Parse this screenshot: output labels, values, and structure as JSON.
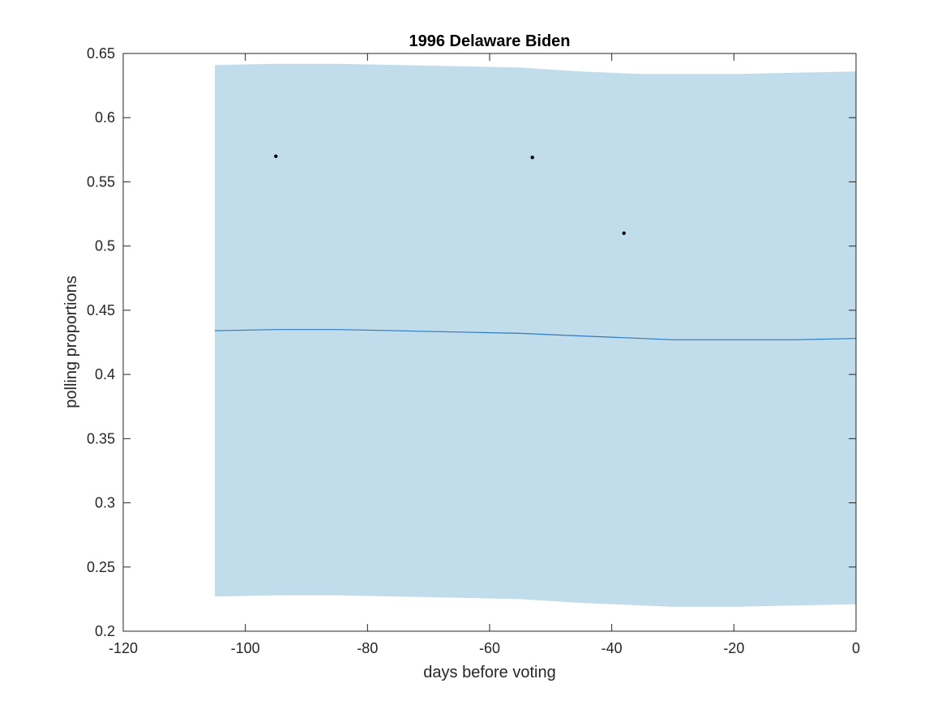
{
  "chart_data": {
    "type": "line",
    "title": "1996 Delaware Biden",
    "xlabel": "days before voting",
    "ylabel": "polling proportions",
    "xlim": [
      -120,
      0
    ],
    "ylim": [
      0.2,
      0.65
    ],
    "xticks": [
      -120,
      -100,
      -80,
      -60,
      -40,
      -20,
      0
    ],
    "xtick_labels": [
      "-120",
      "-100",
      "-80",
      "-60",
      "-40",
      "-20",
      "0"
    ],
    "yticks": [
      0.2,
      0.25,
      0.3,
      0.35,
      0.4,
      0.45,
      0.5,
      0.55,
      0.6,
      0.65
    ],
    "ytick_labels": [
      "0.2",
      "0.25",
      "0.3",
      "0.35",
      "0.4",
      "0.45",
      "0.5",
      "0.55",
      "0.6",
      "0.65"
    ],
    "grid": false,
    "legend": "none",
    "colors": {
      "band": "#c1dcea",
      "line": "#2e7bbf",
      "points": "#000000",
      "axis": "#262626"
    },
    "band": {
      "x": [
        -105,
        -95,
        -85,
        -75,
        -65,
        -55,
        -45,
        -35,
        -30,
        -25,
        -20,
        -10,
        0
      ],
      "upper": [
        0.641,
        0.642,
        0.642,
        0.641,
        0.64,
        0.639,
        0.636,
        0.634,
        0.634,
        0.634,
        0.634,
        0.635,
        0.636
      ],
      "lower": [
        0.227,
        0.228,
        0.228,
        0.227,
        0.226,
        0.225,
        0.222,
        0.22,
        0.219,
        0.219,
        0.219,
        0.22,
        0.221
      ]
    },
    "series": [
      {
        "type": "line",
        "x": [
          -105,
          -95,
          -85,
          -75,
          -65,
          -55,
          -45,
          -35,
          -30,
          -25,
          -20,
          -10,
          0
        ],
        "values": [
          0.434,
          0.435,
          0.435,
          0.434,
          0.433,
          0.432,
          0.43,
          0.428,
          0.427,
          0.427,
          0.427,
          0.427,
          0.428
        ]
      },
      {
        "type": "scatter",
        "x": [
          -95,
          -53,
          -38
        ],
        "values": [
          0.57,
          0.569,
          0.51
        ]
      }
    ]
  }
}
